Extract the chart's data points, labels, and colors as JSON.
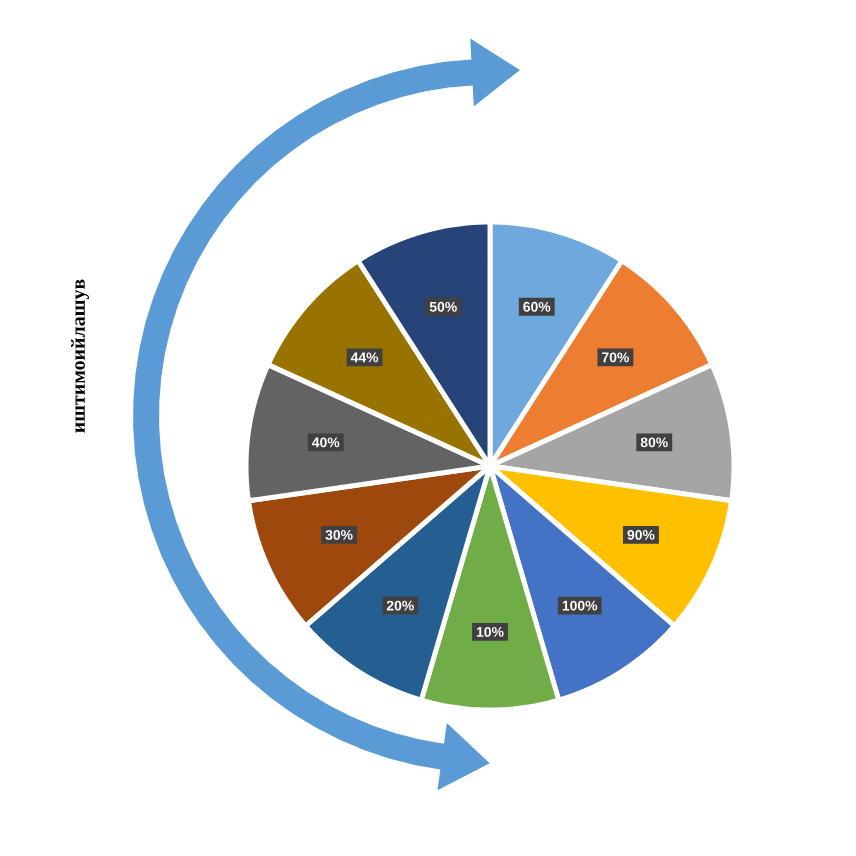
{
  "chart_data": {
    "type": "pie",
    "categories": [
      "60%",
      "70%",
      "80%",
      "90%",
      "100%",
      "10%",
      "20%",
      "30%",
      "40%",
      "44%",
      "50%"
    ],
    "values": [
      9.0909,
      9.0909,
      9.0909,
      9.0909,
      9.0909,
      9.0909,
      9.0909,
      9.0909,
      9.0909,
      9.0909,
      9.0909
    ],
    "colors": [
      "#6fa8dc",
      "#ed7d31",
      "#a5a5a5",
      "#ffc000",
      "#4472c4",
      "#70ad47",
      "#255e91",
      "#9e480e",
      "#636363",
      "#997300",
      "#264478"
    ],
    "annotations": [
      "иштимоийлашув"
    ]
  }
}
